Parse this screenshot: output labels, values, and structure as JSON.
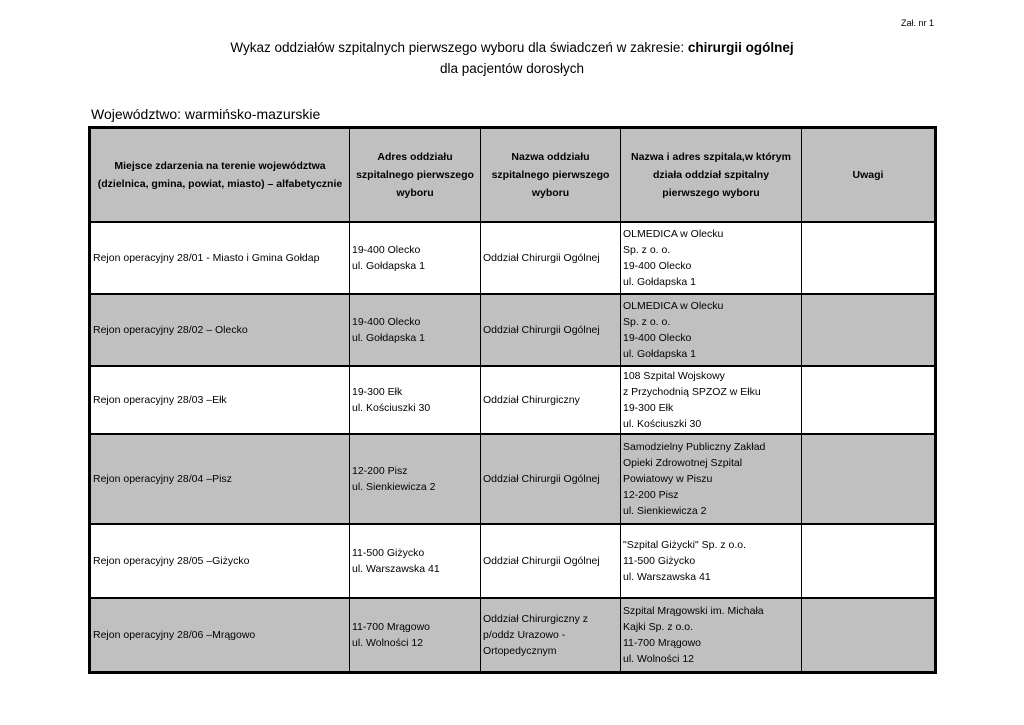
{
  "attachment_label": "Zał. nr 1",
  "title": {
    "line1_prefix": "Wykaz oddziałów szpitalnych pierwszego wyboru dla świadczeń w zakresie: ",
    "line1_bold": "chirurgii ogólnej",
    "line2": "dla pacjentów dorosłych"
  },
  "voivodeship": "Województwo: warmińsko-mazurskie",
  "table": {
    "headers": [
      "Miejsce zdarzenia na terenie województwa (dzielnica, gmina, powiat, miasto) – alfabetycznie",
      "Adres oddziału szpitalnego pierwszego wyboru",
      "Nazwa oddziału szpitalnego pierwszego wyboru",
      "Nazwa i adres szpitala,w którym działa oddział szpitalny pierwszego wyboru",
      "Uwagi"
    ],
    "rows": [
      {
        "place": "Rejon operacyjny 28/01 - Miasto i Gmina Gołdap",
        "address": [
          "19-400 Olecko",
          "ul. Gołdapska 1"
        ],
        "ward": [
          "Oddział Chirurgii Ogólnej"
        ],
        "hospital": [
          "OLMEDICA w Olecku",
          "Sp. z o. o.",
          "19-400 Olecko",
          "ul. Gołdapska 1"
        ],
        "notes": ""
      },
      {
        "place": "Rejon operacyjny 28/02 – Olecko",
        "address": [
          "19-400 Olecko",
          "ul. Gołdapska 1"
        ],
        "ward": [
          "Oddział Chirurgii Ogólnej"
        ],
        "hospital": [
          "OLMEDICA w Olecku",
          "Sp. z o. o.",
          "19-400 Olecko",
          "ul. Gołdapska 1"
        ],
        "notes": ""
      },
      {
        "place": "Rejon operacyjny 28/03 –Ełk",
        "address": [
          "19-300 Ełk",
          "ul. Kościuszki 30"
        ],
        "ward": [
          "Oddział Chirurgiczny"
        ],
        "hospital": [
          "108 Szpital Wojskowy",
          "z Przychodnią SPZOZ w Ełku",
          "19-300 Ełk",
          "ul. Kościuszki 30"
        ],
        "notes": ""
      },
      {
        "place": "Rejon operacyjny 28/04 –Pisz",
        "address": [
          "12-200 Pisz",
          "ul. Sienkiewicza 2"
        ],
        "ward": [
          "Oddział Chirurgii Ogólnej"
        ],
        "hospital": [
          "Samodzielny Publiczny Zakład",
          "Opieki Zdrowotnej Szpital",
          "Powiatowy w Piszu",
          "12-200 Pisz",
          "ul. Sienkiewicza 2"
        ],
        "notes": ""
      },
      {
        "place": "Rejon operacyjny 28/05 –Giżycko",
        "address": [
          "11-500 Giżycko",
          "ul. Warszawska  41"
        ],
        "ward": [
          "Oddział Chirurgii Ogólnej"
        ],
        "hospital": [
          "\"Szpital Giżycki\" Sp. z o.o.",
          "11-500 Giżycko",
          "ul. Warszawska  41"
        ],
        "notes": ""
      },
      {
        "place": "Rejon operacyjny 28/06 –Mrągowo",
        "address": [
          "11-700  Mrągowo",
          "ul. Wolności 12"
        ],
        "ward": [
          "Oddział Chirurgiczny z",
          "p/oddz Urazowo -",
          "Ortopedycznym"
        ],
        "hospital": [
          "Szpital Mrągowski  im. Michała",
          "Kajki Sp. z o.o.",
          "11-700  Mrągowo",
          "ul. Wolności 12"
        ],
        "notes": ""
      }
    ]
  }
}
